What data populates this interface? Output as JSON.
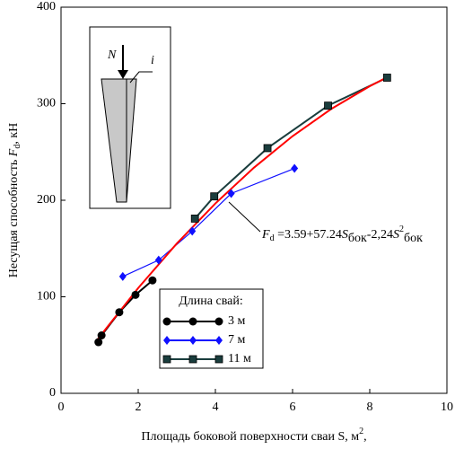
{
  "chart_data": {
    "type": "line",
    "x_label": [
      "Площадь боковой поверхности сваи S, м",
      "2",
      ","
    ],
    "y_label": [
      "Несущая способность ",
      "F",
      "d",
      ", кН"
    ],
    "xlim": [
      0,
      10
    ],
    "xticks": [
      0,
      2,
      4,
      6,
      8,
      10
    ],
    "ylim": [
      0,
      400
    ],
    "yticks": [
      0,
      100,
      200,
      300,
      400
    ],
    "legend_title": "Длина свай:",
    "series": [
      {
        "name": "3 м",
        "color": "#000000",
        "marker": "circle",
        "x": [
          0.97,
          1.05,
          1.51,
          1.93,
          2.37
        ],
        "values": [
          53,
          60,
          84,
          102,
          117
        ]
      },
      {
        "name": "7 м",
        "color": "#1010ff",
        "marker": "diamond",
        "x": [
          1.6,
          2.53,
          3.4,
          4.41,
          6.05
        ],
        "values": [
          121,
          138,
          168,
          207,
          233
        ]
      },
      {
        "name": "11 м",
        "color": "#1a3d3d",
        "marker": "square",
        "x": [
          3.47,
          3.97,
          5.35,
          6.92,
          8.45
        ],
        "values": [
          181,
          204,
          254,
          298,
          327
        ]
      }
    ],
    "fit": {
      "color": "#ff0000",
      "x": [
        0.9,
        1,
        2,
        3,
        4,
        5,
        6,
        7,
        8,
        8.4
      ],
      "values": [
        53.3,
        58.59,
        109.11,
        155.15,
        196.71,
        233.79,
        266.39,
        294.51,
        318.15,
        326.36
      ]
    },
    "annotation": [
      "F",
      "d",
      " =3.59+57.24",
      "S",
      "бок",
      "-2,24",
      "S",
      "2",
      "бок"
    ],
    "diagram_labels": [
      "N",
      "i"
    ]
  }
}
